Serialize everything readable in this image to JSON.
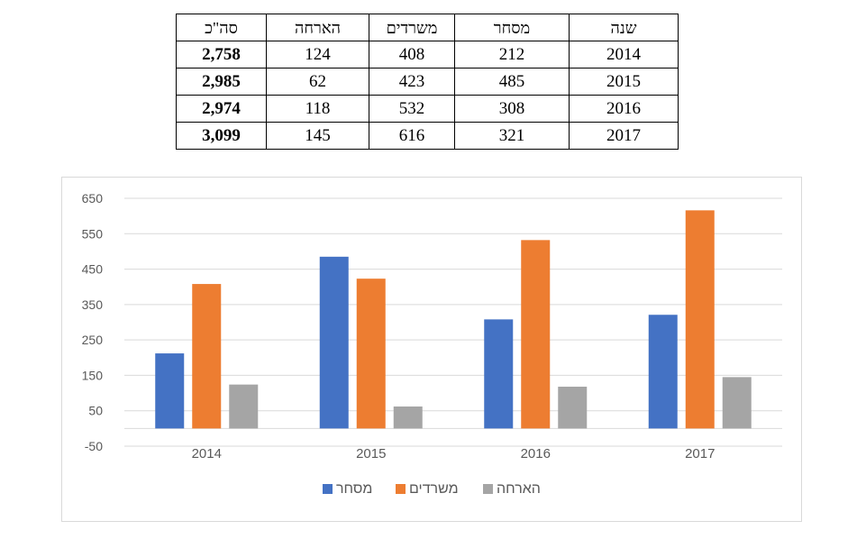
{
  "table": {
    "headers": [
      "סה\"כ",
      "הארחה",
      "משרדים",
      "מסחר",
      "שנה"
    ],
    "rows": [
      [
        "2,758",
        "124",
        "408",
        "212",
        "2014"
      ],
      [
        "2,985",
        "62",
        "423",
        "485",
        "2015"
      ],
      [
        "2,974",
        "118",
        "532",
        "308",
        "2016"
      ],
      [
        "3,099",
        "145",
        "616",
        "321",
        "2017"
      ]
    ]
  },
  "chart_data": {
    "type": "bar",
    "categories": [
      "2014",
      "2015",
      "2016",
      "2017"
    ],
    "series": [
      {
        "name": "מסחר",
        "values": [
          212,
          485,
          308,
          321
        ],
        "color": "#4472c4"
      },
      {
        "name": "משרדים",
        "values": [
          408,
          423,
          532,
          616
        ],
        "color": "#ed7d31"
      },
      {
        "name": "הארחה",
        "values": [
          124,
          62,
          118,
          145
        ],
        "color": "#a5a5a5"
      }
    ],
    "ylim": [
      -50,
      650
    ],
    "yticks": [
      -50,
      50,
      150,
      250,
      350,
      450,
      550,
      650
    ],
    "ytick_labels": [
      "-50",
      "50",
      "150",
      "250",
      "350",
      "450",
      "550",
      "650"
    ],
    "grid": true,
    "legend_position": "bottom"
  }
}
